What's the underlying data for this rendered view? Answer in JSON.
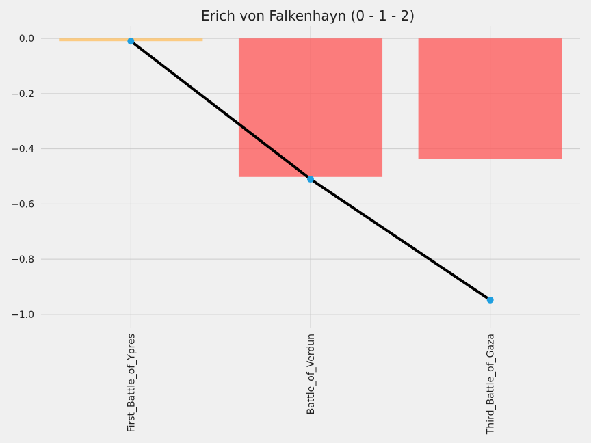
{
  "chart_data": {
    "type": "bar",
    "title": "Erich von Falkenhayn (0 - 1 - 2)",
    "xlabel": "",
    "ylabel": "",
    "categories": [
      "First_Battle_of_Ypres",
      "Battle_of_Verdun",
      "Third_Battle_of_Gaza"
    ],
    "series": [
      {
        "type": "bar",
        "values": [
          -0.01,
          -0.502,
          -0.438
        ],
        "colors": [
          "#ffc266",
          "#ff5555",
          "#ff5555"
        ]
      },
      {
        "type": "line",
        "values": [
          -0.01,
          -0.51,
          -0.948
        ],
        "color": "#000000",
        "marker_color": "#1f9fe0"
      }
    ],
    "ylim": [
      -1.05,
      0.045
    ],
    "yticks": [
      0.0,
      -0.2,
      -0.4,
      -0.6,
      -0.8,
      -1.0
    ],
    "ytick_labels": [
      "0.0",
      "−0.2",
      "−0.4",
      "−0.6",
      "−0.8",
      "−1.0"
    ],
    "grid": true,
    "legend": "none"
  }
}
